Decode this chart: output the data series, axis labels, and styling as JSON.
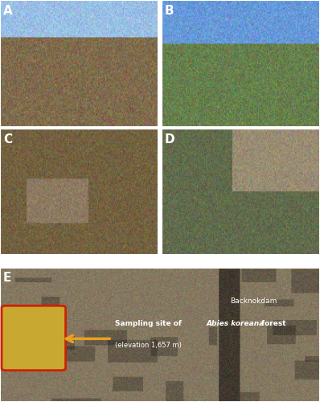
{
  "figsize": [
    3.98,
    5.0
  ],
  "dpi": 100,
  "panels": [
    "A",
    "B",
    "C",
    "D",
    "E"
  ],
  "label_fontsize": 11,
  "label_color": "white",
  "label_bg_color": "#1a1a2e",
  "panel_A_color": "#8B7355",
  "panel_B_color": "#6B8E5A",
  "panel_C_color": "#7A6B4A",
  "panel_D_color": "#5A6B4A",
  "panel_E_color": "#8B7D6B",
  "border_color": "white",
  "border_linewidth": 1.5,
  "annotation_text_line1": "Sampling site of ",
  "annotation_italic": "Abies koreana",
  "annotation_text_line1_end": " forest",
  "annotation_text_line2": "(elevation 1,657 m)",
  "annotation_color": "white",
  "annotation_fontsize": 6.5,
  "backnokdam_text": "Backnokdam",
  "backnokdam_fontsize": 6.5,
  "backnokdam_color": "white",
  "box_color": "#C8A830",
  "box_border_color": "#CC2200",
  "arrow_color": "#E8A020"
}
